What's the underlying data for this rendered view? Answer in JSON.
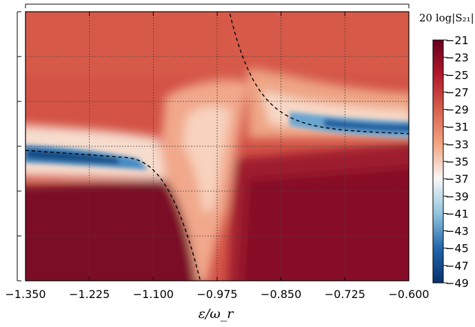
{
  "chart_data": {
    "type": "heatmap",
    "title": "",
    "xlabel": "ε/ω_r",
    "ylabel": "",
    "xlim": [
      -1.35,
      -0.6
    ],
    "x_ticks": [
      "−1.350",
      "−1.225",
      "−1.100",
      "−0.975",
      "−0.850",
      "−0.725",
      "−0.600"
    ],
    "y_tick_count": 6,
    "grid": true,
    "colorbar": {
      "title": "20 log|S₂₁|",
      "min": -49,
      "max": -21,
      "ticks": [
        "−21",
        "−23",
        "−25",
        "−27",
        "−29",
        "−31",
        "−33",
        "−35",
        "−37",
        "−39",
        "−41",
        "−43",
        "−45",
        "−47",
        "−49"
      ],
      "colormap": "RdBu_r",
      "colors": [
        "#08306b",
        "#2166ac",
        "#92c5de",
        "#f7f7f7",
        "#f4a582",
        "#d6604d",
        "#b2182b",
        "#67001f"
      ]
    },
    "series": [
      {
        "style": "dashed",
        "color": "#000000",
        "x": [
          -1.35,
          -1.3,
          -1.25,
          -1.2,
          -1.15,
          -1.1,
          -1.07,
          -1.04,
          -1.02,
          -1.01,
          -1.005
        ]
      },
      {
        "style": "dashed",
        "color": "#000000",
        "x": [
          -0.95,
          -0.945,
          -0.935,
          -0.92,
          -0.9,
          -0.87,
          -0.83,
          -0.78,
          -0.72,
          -0.66,
          -0.6
        ]
      }
    ]
  }
}
